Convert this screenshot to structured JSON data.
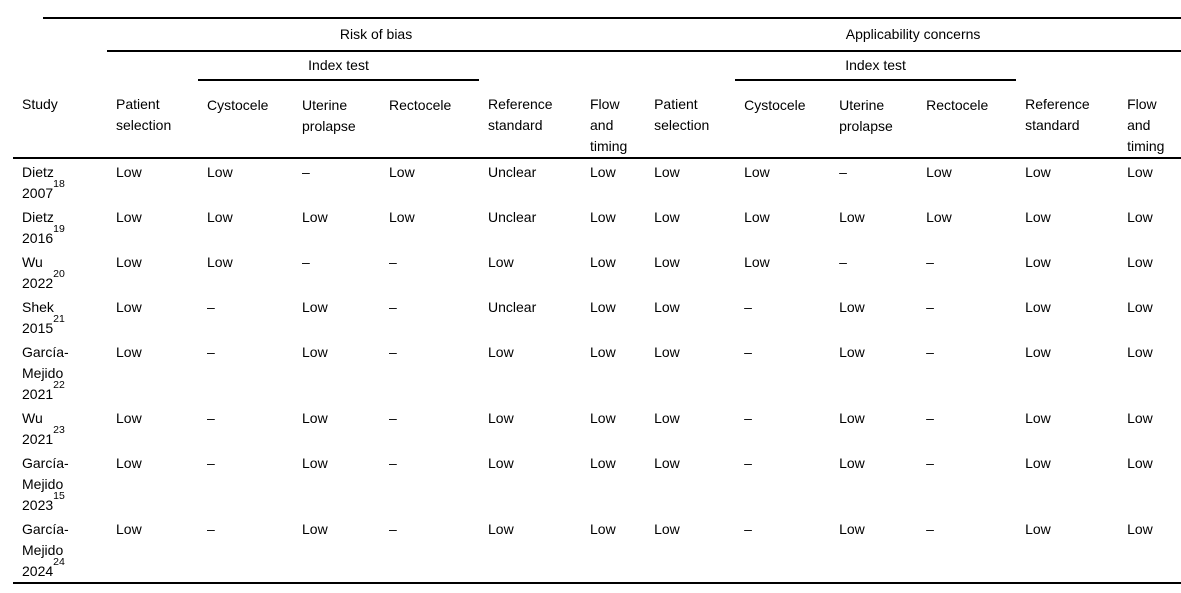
{
  "colors": {
    "text": "#000000",
    "rules": "#000000",
    "background": "#ffffff"
  },
  "table": {
    "sections": {
      "risk_of_bias": "Risk of bias",
      "applicability_concerns": "Applicability concerns"
    },
    "index_test_label": "Index test",
    "study_col_label": "Study",
    "sub_columns": [
      "Patient selection",
      "Cystocele",
      "Uterine prolapse",
      "Rectocele",
      "Reference standard",
      "Flow and timing"
    ],
    "empty_value": "–",
    "rows": [
      {
        "study_lines": [
          "Dietz",
          "2007"
        ],
        "ref": "18",
        "risk_of_bias": [
          "Low",
          "Low",
          "–",
          "Low",
          "Unclear",
          "Low"
        ],
        "applicability_concerns": [
          "Low",
          "Low",
          "–",
          "Low",
          "Low",
          "Low"
        ]
      },
      {
        "study_lines": [
          "Dietz",
          "2016"
        ],
        "ref": "19",
        "risk_of_bias": [
          "Low",
          "Low",
          "Low",
          "Low",
          "Unclear",
          "Low"
        ],
        "applicability_concerns": [
          "Low",
          "Low",
          "Low",
          "Low",
          "Low",
          "Low"
        ]
      },
      {
        "study_lines": [
          "Wu",
          "2022"
        ],
        "ref": "20",
        "risk_of_bias": [
          "Low",
          "Low",
          "–",
          "–",
          "Low",
          "Low"
        ],
        "applicability_concerns": [
          "Low",
          "Low",
          "–",
          "–",
          "Low",
          "Low"
        ]
      },
      {
        "study_lines": [
          "Shek",
          "2015"
        ],
        "ref": "21",
        "risk_of_bias": [
          "Low",
          "–",
          "Low",
          "–",
          "Unclear",
          "Low"
        ],
        "applicability_concerns": [
          "Low",
          "–",
          "Low",
          "–",
          "Low",
          "Low"
        ]
      },
      {
        "study_lines": [
          "García-",
          "Mejido",
          "2021"
        ],
        "ref": "22",
        "risk_of_bias": [
          "Low",
          "–",
          "Low",
          "–",
          "Low",
          "Low"
        ],
        "applicability_concerns": [
          "Low",
          "–",
          "Low",
          "–",
          "Low",
          "Low"
        ]
      },
      {
        "study_lines": [
          "Wu",
          "2021"
        ],
        "ref": "23",
        "risk_of_bias": [
          "Low",
          "–",
          "Low",
          "–",
          "Low",
          "Low"
        ],
        "applicability_concerns": [
          "Low",
          "–",
          "Low",
          "–",
          "Low",
          "Low"
        ]
      },
      {
        "study_lines": [
          "García-",
          "Mejido",
          "2023"
        ],
        "ref": "15",
        "risk_of_bias": [
          "Low",
          "–",
          "Low",
          "–",
          "Low",
          "Low"
        ],
        "applicability_concerns": [
          "Low",
          "–",
          "Low",
          "–",
          "Low",
          "Low"
        ]
      },
      {
        "study_lines": [
          "García-",
          "Mejido",
          "2024"
        ],
        "ref": "24",
        "risk_of_bias": [
          "Low",
          "–",
          "Low",
          "–",
          "Low",
          "Low"
        ],
        "applicability_concerns": [
          "Low",
          "–",
          "Low",
          "–",
          "Low",
          "Low"
        ]
      }
    ]
  }
}
